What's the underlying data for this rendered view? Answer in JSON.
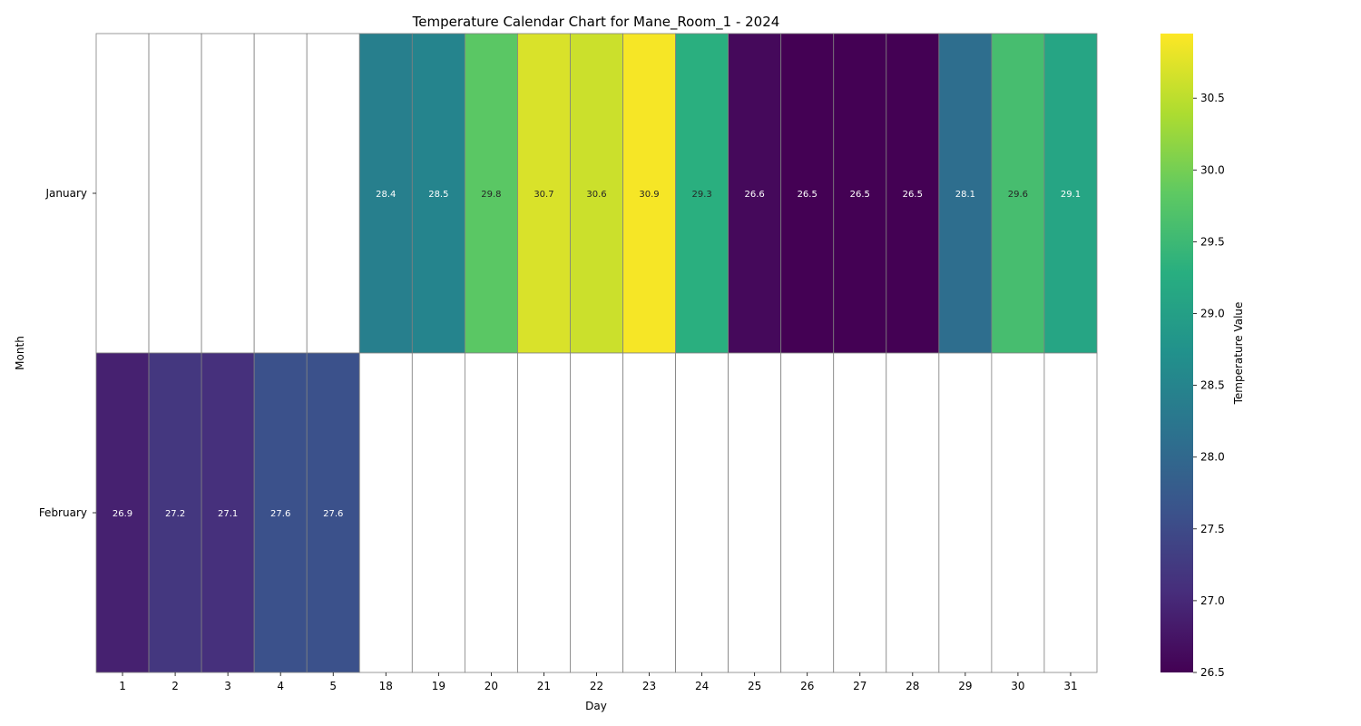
{
  "chart_data": {
    "type": "heatmap",
    "title": "Temperature Calendar Chart for Mane_Room_1 - 2024",
    "xlabel": "Day",
    "ylabel": "Month",
    "x": [
      "1",
      "2",
      "3",
      "4",
      "5",
      "18",
      "19",
      "20",
      "21",
      "22",
      "23",
      "24",
      "25",
      "26",
      "27",
      "28",
      "29",
      "30",
      "31"
    ],
    "y": [
      "January",
      "February"
    ],
    "values": [
      [
        null,
        null,
        null,
        null,
        null,
        28.4,
        28.5,
        29.8,
        30.7,
        30.6,
        30.9,
        29.3,
        26.6,
        26.5,
        26.5,
        26.5,
        28.1,
        29.6,
        29.1
      ],
      [
        26.9,
        27.2,
        27.1,
        27.6,
        27.6,
        null,
        null,
        null,
        null,
        null,
        null,
        null,
        null,
        null,
        null,
        null,
        null,
        null,
        null
      ]
    ],
    "colormap": "viridis",
    "colorbar": {
      "label": "Temperature Value",
      "range": [
        26.5,
        30.95
      ],
      "ticks": [
        "26.5",
        "27.0",
        "27.5",
        "28.0",
        "28.5",
        "29.0",
        "29.5",
        "30.0",
        "30.5"
      ]
    },
    "grid": true,
    "legend": "none"
  }
}
